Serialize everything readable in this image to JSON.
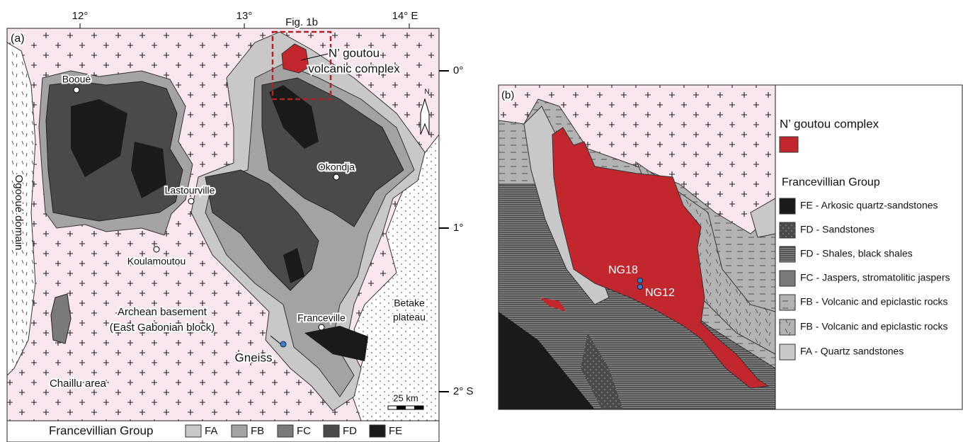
{
  "panel_a": {
    "label": "(a)",
    "lon_labels": [
      "12°",
      "13°",
      "14° E"
    ],
    "lat_labels": [
      "0°",
      "1°",
      "2° S"
    ],
    "inset_label": "Fig. 1b",
    "complex_label": [
      "N’ goutou",
      "volcanic complex"
    ],
    "places": [
      "Booué",
      "Okondja",
      "Lastourville",
      "Koulamoutou",
      "Franceville"
    ],
    "ogooue": "Ogooué domain",
    "basement": [
      "Archean basement",
      "(East Gabonian block)"
    ],
    "betake": [
      "Betake",
      "plateau"
    ],
    "gneiss": "Gneiss",
    "chaillu": "Chaillu area",
    "scale": "25 km",
    "north": "N",
    "legend": {
      "title": "Francevillian Group",
      "items": [
        "FA",
        "FB",
        "FC",
        "FD",
        "FE"
      ]
    }
  },
  "panel_b": {
    "label": "(b)",
    "samples": [
      "NG18",
      "NG12"
    ],
    "legend": {
      "complex_title": "N’ goutou complex",
      "group_title": "Francevillian Group",
      "items": [
        "FE - Arkosic quartz-sandstones",
        "FD - Sandstones",
        "FD - Shales, black shales",
        "FC - Jaspers, stromatolitic jaspers",
        "FB - Volcanic and epiclastic rocks",
        "FB - Volcanic and epiclastic rocks",
        "FA - Quartz sandstones"
      ]
    }
  }
}
